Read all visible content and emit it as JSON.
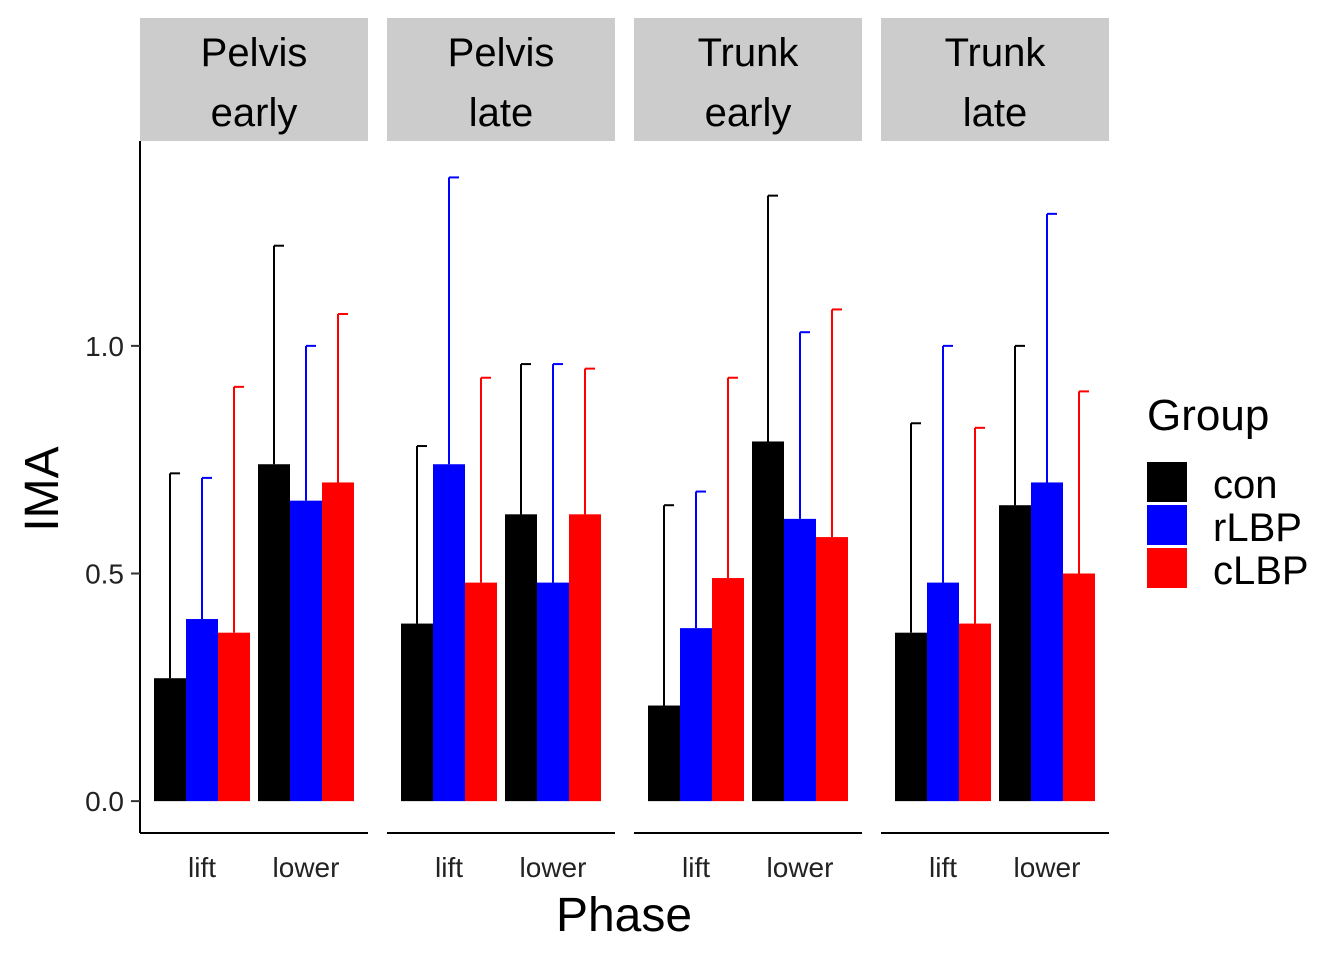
{
  "chart_data": {
    "type": "bar",
    "facet_label_lines": [
      [
        "Pelvis",
        "early"
      ],
      [
        "Pelvis",
        "late"
      ],
      [
        "Trunk",
        "early"
      ],
      [
        "Trunk",
        "late"
      ]
    ],
    "categories": [
      "lift",
      "lower"
    ],
    "xlabel": "Phase",
    "ylabel": "IMA",
    "ylim": [
      -0.07,
      1.45
    ],
    "yticks": [
      0.0,
      0.5,
      1.0
    ],
    "ytick_labels": [
      "0.0",
      "0.5",
      "1.0"
    ],
    "grid": false,
    "legend": {
      "title": "Group",
      "position": "right",
      "entries": [
        "con",
        "rLBP",
        "cLBP"
      ]
    },
    "series_colors": {
      "con": "#000000",
      "rLBP": "#0000FF",
      "cLBP": "#FF0000"
    },
    "strip_background": "#CCCCCC",
    "facets": [
      {
        "label": "Pelvis early",
        "series": [
          {
            "name": "con",
            "values": [
              0.27,
              0.74
            ],
            "error_upper": [
              0.72,
              1.22
            ]
          },
          {
            "name": "rLBP",
            "values": [
              0.4,
              0.66
            ],
            "error_upper": [
              0.71,
              1.0
            ]
          },
          {
            "name": "cLBP",
            "values": [
              0.37,
              0.7
            ],
            "error_upper": [
              0.91,
              1.07
            ]
          }
        ]
      },
      {
        "label": "Pelvis late",
        "series": [
          {
            "name": "con",
            "values": [
              0.39,
              0.63
            ],
            "error_upper": [
              0.78,
              0.96
            ]
          },
          {
            "name": "rLBP",
            "values": [
              0.74,
              0.48
            ],
            "error_upper": [
              1.37,
              0.96
            ]
          },
          {
            "name": "cLBP",
            "values": [
              0.48,
              0.63
            ],
            "error_upper": [
              0.93,
              0.95
            ]
          }
        ]
      },
      {
        "label": "Trunk early",
        "series": [
          {
            "name": "con",
            "values": [
              0.21,
              0.79
            ],
            "error_upper": [
              0.65,
              1.33
            ]
          },
          {
            "name": "rLBP",
            "values": [
              0.38,
              0.62
            ],
            "error_upper": [
              0.68,
              1.03
            ]
          },
          {
            "name": "cLBP",
            "values": [
              0.49,
              0.58
            ],
            "error_upper": [
              0.93,
              1.08
            ]
          }
        ]
      },
      {
        "label": "Trunk late",
        "series": [
          {
            "name": "con",
            "values": [
              0.37,
              0.65
            ],
            "error_upper": [
              0.83,
              1.0
            ]
          },
          {
            "name": "rLBP",
            "values": [
              0.48,
              0.7
            ],
            "error_upper": [
              1.0,
              1.29
            ]
          },
          {
            "name": "cLBP",
            "values": [
              0.39,
              0.5
            ],
            "error_upper": [
              0.82,
              0.9
            ]
          }
        ]
      }
    ]
  }
}
